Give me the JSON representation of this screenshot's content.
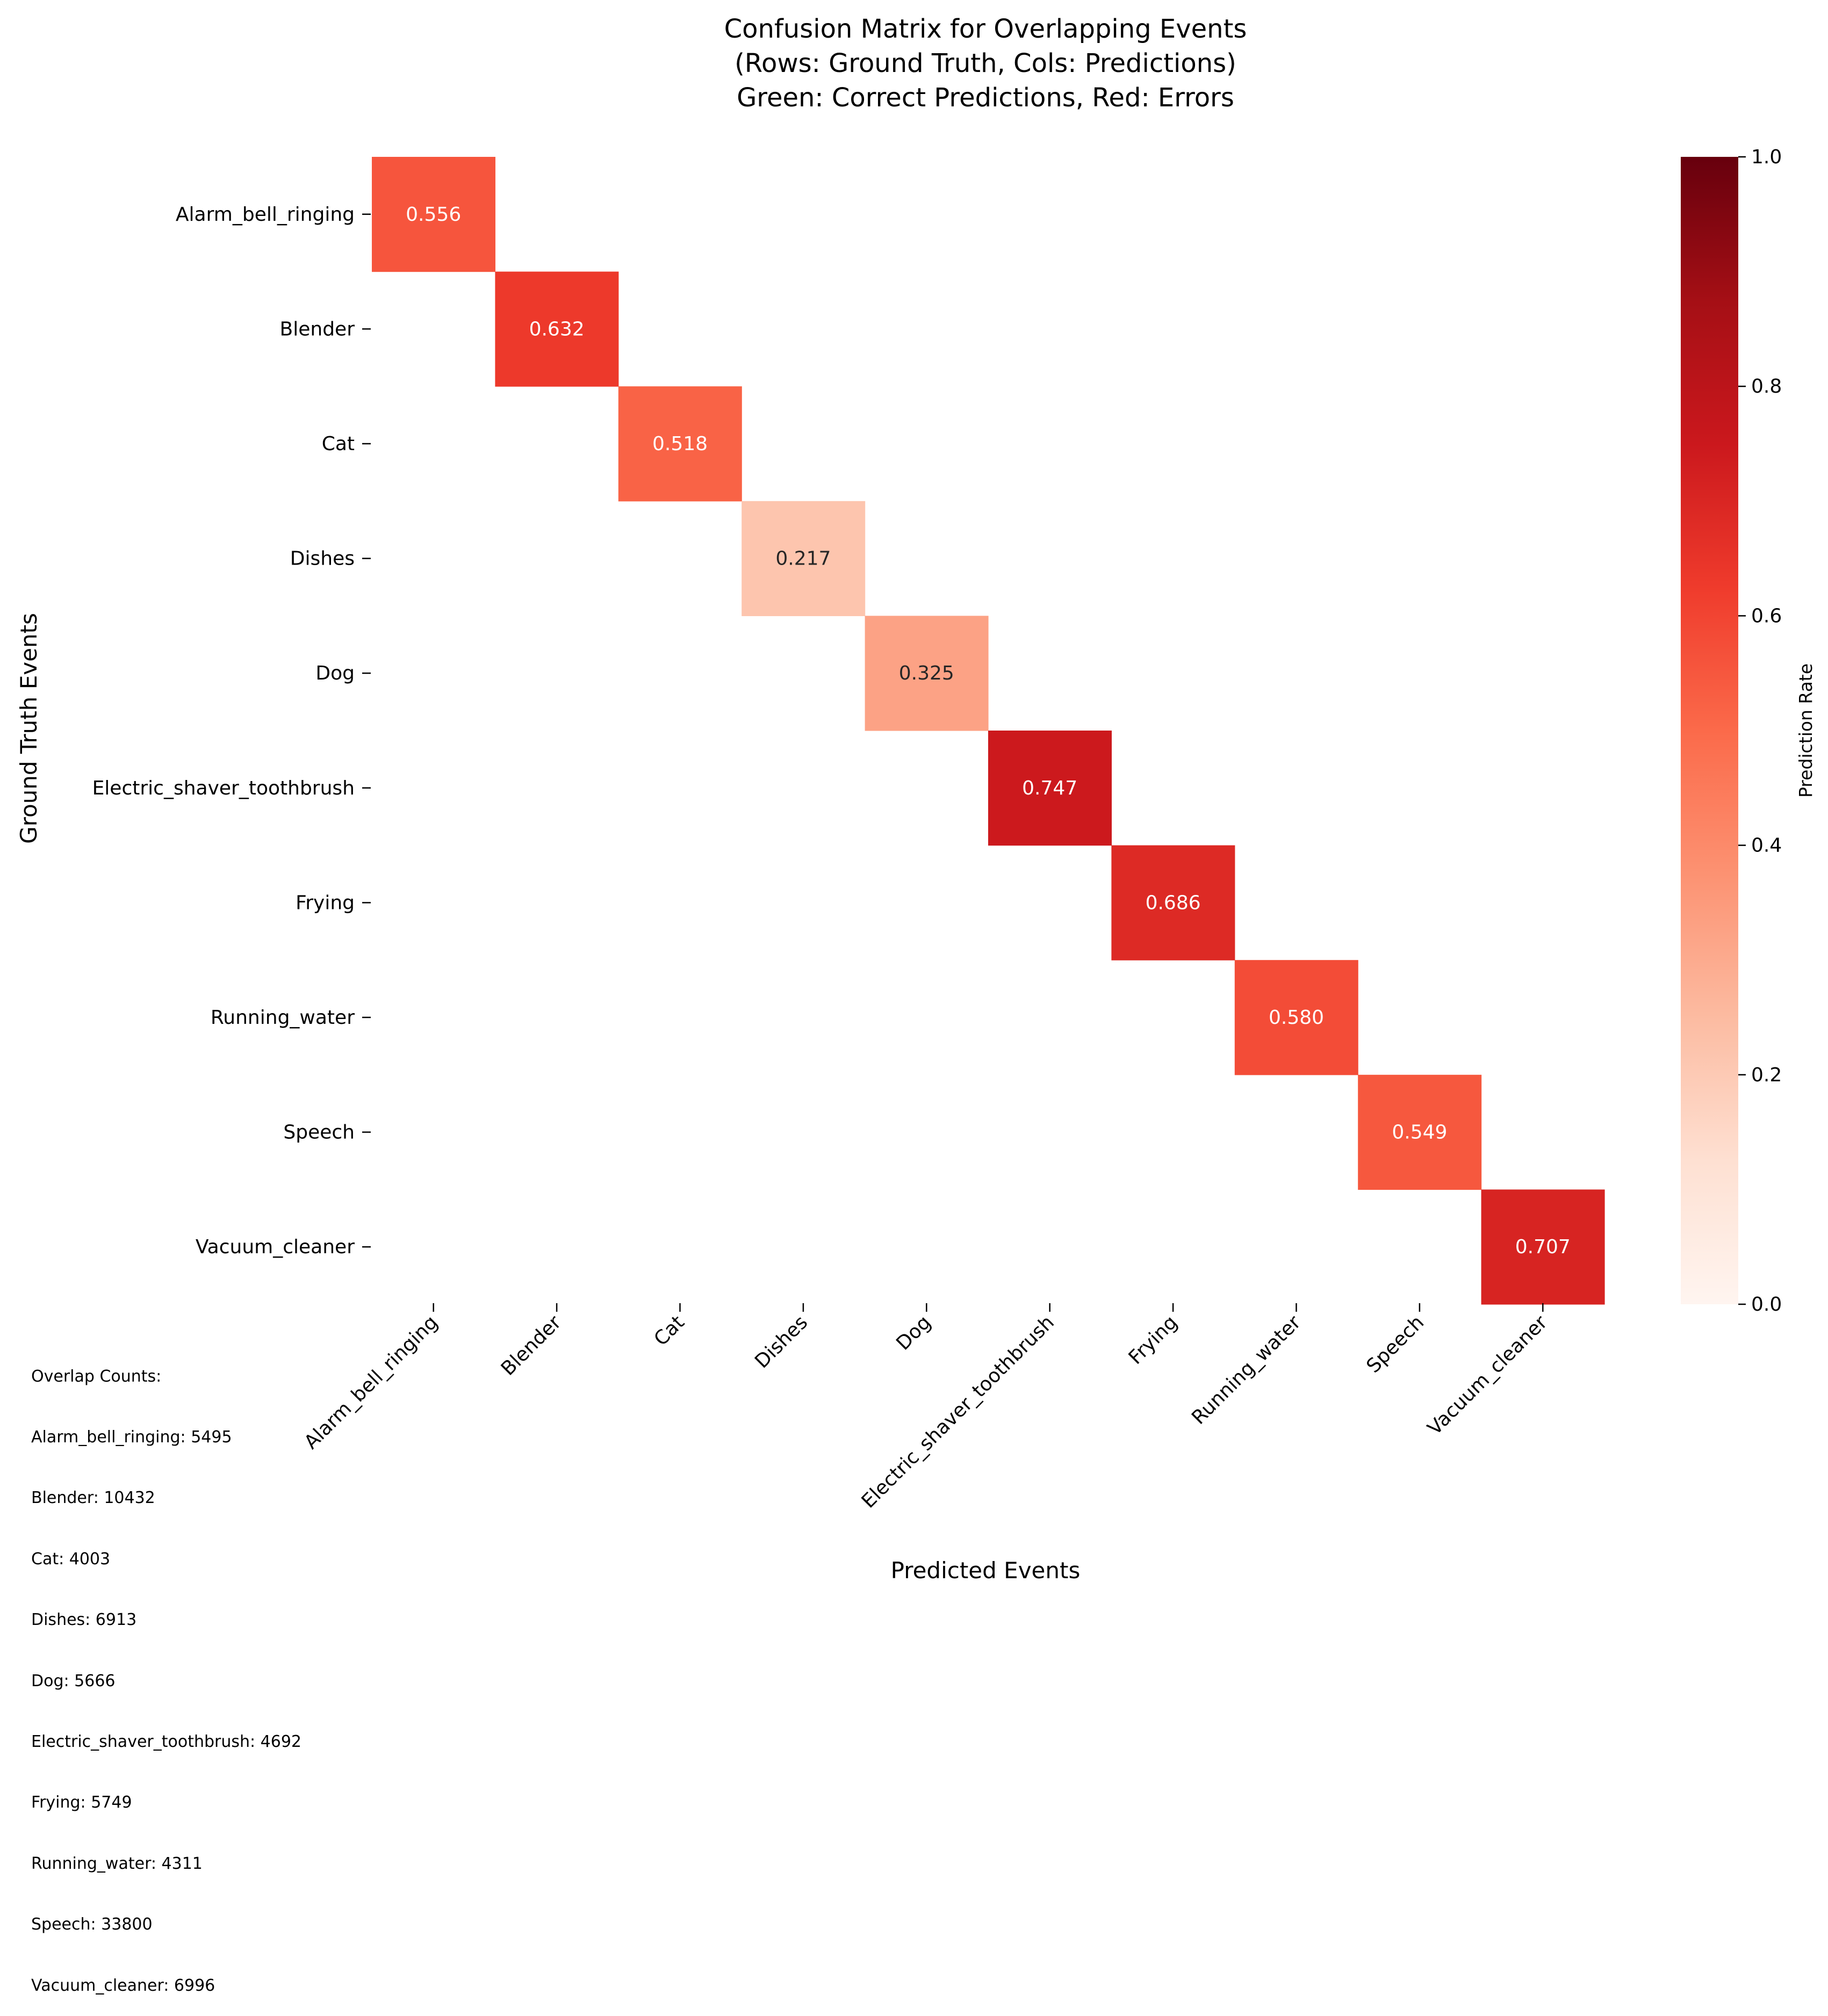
{
  "chart_data": {
    "type": "heatmap",
    "title": [
      "Confusion Matrix for Overlapping Events",
      "(Rows: Ground Truth, Cols: Predictions)",
      "Green: Correct Predictions, Red: Errors"
    ],
    "xlabel": "Predicted Events",
    "ylabel": "Ground Truth Events",
    "categories": [
      "Alarm_bell_ringing",
      "Blender",
      "Cat",
      "Dishes",
      "Dog",
      "Electric_shaver_toothbrush",
      "Frying",
      "Running_water",
      "Speech",
      "Vacuum_cleaner"
    ],
    "diagonal_values": [
      0.556,
      0.632,
      0.518,
      0.217,
      0.325,
      0.747,
      0.686,
      0.58,
      0.549,
      0.707
    ],
    "diagonal_labels": [
      "0.556",
      "0.632",
      "0.518",
      "0.217",
      "0.325",
      "0.747",
      "0.686",
      "0.580",
      "0.549",
      "0.707"
    ],
    "off_diagonal": "empty",
    "colormap": "Reds",
    "colorbar": {
      "label": "Prediction Rate",
      "range": [
        0.0,
        1.0
      ],
      "ticks": [
        "0.0",
        "0.2",
        "0.4",
        "0.6",
        "0.8",
        "1.0"
      ]
    },
    "overlap_counts_title": "Overlap Counts:",
    "overlap_counts": [
      "Alarm_bell_ringing: 5495",
      "Blender: 10432",
      "Cat: 4003",
      "Dishes: 6913",
      "Dog: 5666",
      "Electric_shaver_toothbrush: 4692",
      "Frying: 5749",
      "Running_water: 4311",
      "Speech: 33800",
      "Vacuum_cleaner: 6996"
    ]
  }
}
